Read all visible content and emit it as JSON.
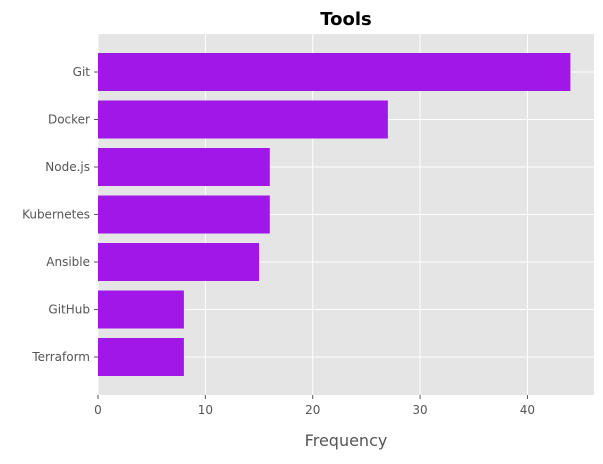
{
  "chart_data": {
    "type": "bar",
    "orientation": "horizontal",
    "title": "Tools",
    "xlabel": "Frequency",
    "ylabel": "",
    "categories": [
      "Git",
      "Docker",
      "Node.js",
      "Kubernetes",
      "Ansible",
      "GitHub",
      "Terraform"
    ],
    "values": [
      44,
      27,
      16,
      16,
      15,
      8,
      8
    ],
    "xlim": [
      0,
      46.2
    ],
    "xticks": [
      0,
      10,
      20,
      30,
      40
    ],
    "grid": true,
    "legend": "none",
    "style": "ggplot"
  },
  "colors": {
    "bar": "#a017e8",
    "plot_background": "#e5e5e5",
    "grid": "#ffffff",
    "tick_label": "#555555",
    "title": "#000000"
  }
}
